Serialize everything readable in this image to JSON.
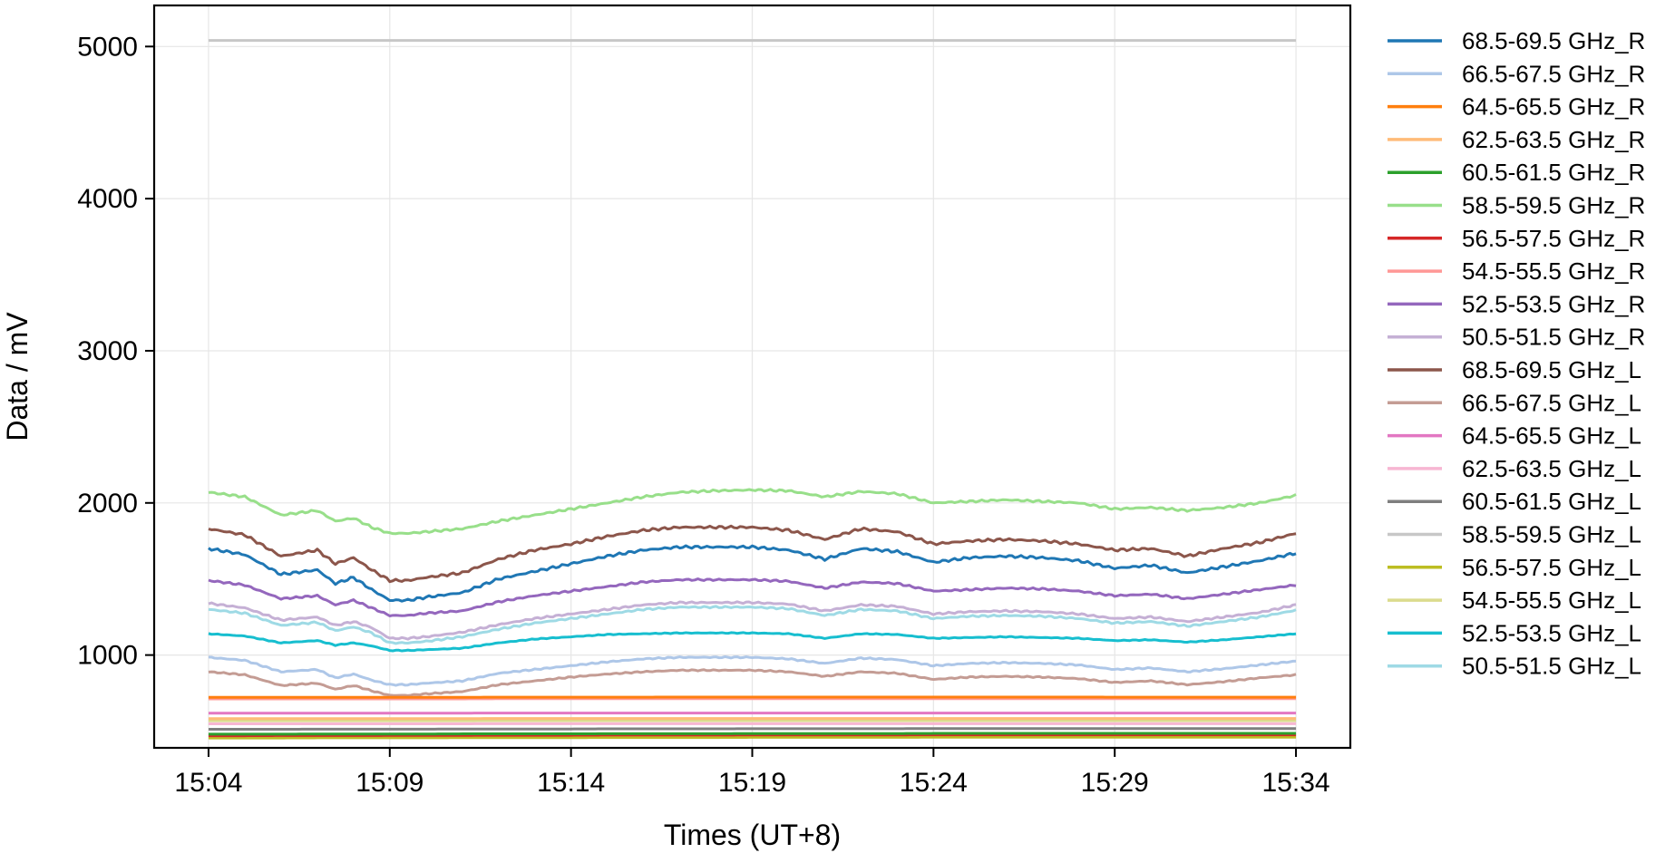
{
  "chart_data": {
    "type": "line",
    "title": "",
    "xlabel": "Times (UT+8)",
    "ylabel": "Data / mV",
    "x_ticks": [
      "15:04",
      "15:09",
      "15:14",
      "15:19",
      "15:24",
      "15:29",
      "15:34"
    ],
    "x_tick_minutes": [
      0,
      5,
      10,
      15,
      20,
      25,
      30
    ],
    "x_range_minutes": [
      -1.5,
      31.5
    ],
    "y_ticks": [
      1000,
      2000,
      3000,
      4000,
      5000
    ],
    "ylim": [
      390,
      5270
    ],
    "grid": true,
    "legend_position": "outside-right",
    "x_knots": [
      0,
      1,
      2,
      3,
      3.5,
      4,
      4.5,
      5,
      5.5,
      6,
      7,
      8,
      9,
      10,
      11,
      12,
      13,
      14,
      15,
      16,
      17,
      18,
      19,
      20,
      21,
      22,
      23,
      24,
      25,
      26,
      27,
      28,
      29,
      30
    ],
    "series": [
      {
        "name": "68.5-69.5 GHz_R",
        "color": "#1f77b4",
        "values": [
          1700,
          1660,
          1530,
          1560,
          1470,
          1510,
          1430,
          1360,
          1360,
          1380,
          1410,
          1500,
          1550,
          1600,
          1650,
          1690,
          1710,
          1710,
          1710,
          1690,
          1630,
          1700,
          1680,
          1610,
          1640,
          1650,
          1640,
          1620,
          1570,
          1590,
          1540,
          1580,
          1620,
          1670
        ]
      },
      {
        "name": "66.5-67.5 GHz_R",
        "color": "#aec7e8",
        "values": [
          985,
          965,
          890,
          905,
          850,
          875,
          835,
          805,
          805,
          815,
          830,
          880,
          905,
          930,
          955,
          975,
          985,
          985,
          985,
          975,
          945,
          980,
          970,
          930,
          945,
          950,
          945,
          935,
          905,
          915,
          890,
          910,
          935,
          960
        ]
      },
      {
        "name": "64.5-65.5 GHz_R",
        "color": "#ff7f0e",
        "values": [
          722,
          722,
          722,
          722,
          722,
          722,
          722,
          722,
          722,
          722,
          722,
          723,
          723,
          723,
          723,
          723,
          724,
          724,
          724,
          724,
          724,
          724,
          724,
          724,
          724,
          724,
          724,
          724,
          723,
          723,
          723,
          723,
          723,
          723
        ]
      },
      {
        "name": "62.5-63.5 GHz_R",
        "color": "#ffbb78",
        "values": [
          582,
          582,
          582,
          582,
          582,
          582,
          582,
          582,
          582,
          582,
          582,
          583,
          583,
          583,
          583,
          583,
          583,
          583,
          583,
          583,
          583,
          583,
          583,
          583,
          583,
          583,
          583,
          583,
          583,
          583,
          583,
          583,
          583,
          583
        ]
      },
      {
        "name": "60.5-61.5 GHz_R",
        "color": "#2ca02c",
        "values": [
          480,
          480,
          480,
          481,
          481,
          481,
          481,
          481,
          481,
          481,
          482,
          482,
          482,
          482,
          483,
          483,
          483,
          483,
          484,
          484,
          484,
          484,
          484,
          485,
          485,
          485,
          485,
          485,
          485,
          485,
          485,
          485,
          485,
          485
        ]
      },
      {
        "name": "58.5-59.5 GHz_R",
        "color": "#98df8a",
        "values": [
          2070,
          2040,
          1920,
          1950,
          1880,
          1900,
          1840,
          1800,
          1800,
          1810,
          1830,
          1880,
          1920,
          1960,
          2000,
          2040,
          2070,
          2080,
          2085,
          2080,
          2040,
          2075,
          2060,
          2000,
          2010,
          2020,
          2010,
          2000,
          1960,
          1970,
          1950,
          1970,
          2000,
          2050
        ]
      },
      {
        "name": "56.5-57.5 GHz_R",
        "color": "#d62728",
        "values": [
          470,
          470,
          471,
          471,
          471,
          471,
          471,
          472,
          472,
          472,
          472,
          473,
          473,
          473,
          474,
          474,
          474,
          474,
          475,
          475,
          475,
          475,
          475,
          476,
          476,
          476,
          476,
          476,
          476,
          476,
          476,
          476,
          476,
          476
        ]
      },
      {
        "name": "54.5-55.5 GHz_R",
        "color": "#ff9896",
        "values": [
          712,
          712,
          712,
          712,
          712,
          712,
          712,
          712,
          712,
          712,
          712,
          713,
          713,
          713,
          713,
          713,
          713,
          713,
          713,
          713,
          713,
          713,
          713,
          713,
          713,
          713,
          713,
          713,
          713,
          713,
          713,
          713,
          713,
          713
        ]
      },
      {
        "name": "52.5-53.5 GHz_R",
        "color": "#9467bd",
        "values": [
          1490,
          1460,
          1370,
          1390,
          1330,
          1360,
          1310,
          1260,
          1260,
          1275,
          1290,
          1350,
          1390,
          1420,
          1450,
          1480,
          1495,
          1495,
          1495,
          1485,
          1440,
          1480,
          1470,
          1420,
          1430,
          1440,
          1435,
          1420,
          1390,
          1400,
          1370,
          1400,
          1430,
          1460
        ]
      },
      {
        "name": "50.5-51.5 GHz_R",
        "color": "#c5b0d5",
        "values": [
          1340,
          1310,
          1230,
          1250,
          1195,
          1220,
          1180,
          1110,
          1110,
          1120,
          1150,
          1200,
          1240,
          1270,
          1300,
          1330,
          1345,
          1345,
          1345,
          1335,
          1290,
          1330,
          1320,
          1270,
          1285,
          1290,
          1285,
          1270,
          1240,
          1250,
          1220,
          1250,
          1280,
          1330
        ]
      },
      {
        "name": "68.5-69.5 GHz_L",
        "color": "#8c564b",
        "values": [
          1830,
          1790,
          1650,
          1690,
          1600,
          1640,
          1560,
          1490,
          1490,
          1510,
          1540,
          1630,
          1690,
          1730,
          1780,
          1820,
          1840,
          1840,
          1840,
          1820,
          1760,
          1830,
          1810,
          1730,
          1750,
          1760,
          1750,
          1730,
          1690,
          1700,
          1650,
          1700,
          1740,
          1800
        ]
      },
      {
        "name": "66.5-67.5 GHz_L",
        "color": "#c49c94",
        "values": [
          890,
          870,
          800,
          815,
          775,
          800,
          765,
          735,
          735,
          745,
          760,
          805,
          830,
          855,
          875,
          890,
          900,
          900,
          900,
          890,
          860,
          890,
          880,
          840,
          855,
          860,
          855,
          845,
          820,
          830,
          805,
          825,
          850,
          870
        ]
      },
      {
        "name": "64.5-65.5 GHz_L",
        "color": "#e377c2",
        "values": [
          618,
          618,
          618,
          618,
          618,
          618,
          618,
          618,
          618,
          618,
          618,
          619,
          619,
          619,
          619,
          619,
          619,
          619,
          619,
          619,
          619,
          619,
          619,
          619,
          619,
          619,
          619,
          619,
          619,
          619,
          619,
          619,
          619,
          619
        ]
      },
      {
        "name": "62.5-63.5 GHz_L",
        "color": "#f7b6d2",
        "values": [
          548,
          548,
          548,
          548,
          548,
          548,
          548,
          548,
          548,
          548,
          548,
          549,
          549,
          549,
          549,
          549,
          549,
          549,
          549,
          549,
          549,
          549,
          549,
          549,
          549,
          549,
          549,
          549,
          549,
          549,
          549,
          549,
          549,
          549
        ]
      },
      {
        "name": "60.5-61.5 GHz_L",
        "color": "#7f7f7f",
        "values": [
          512,
          512,
          512,
          513,
          513,
          513,
          513,
          513,
          513,
          513,
          514,
          514,
          514,
          514,
          515,
          515,
          515,
          515,
          516,
          516,
          516,
          516,
          516,
          517,
          517,
          517,
          517,
          517,
          517,
          517,
          517,
          517,
          517,
          517
        ]
      },
      {
        "name": "58.5-59.5 GHz_L",
        "color": "#c7c7c7",
        "values": [
          5040,
          5040,
          5040,
          5040,
          5040,
          5040,
          5040,
          5040,
          5040,
          5040,
          5040,
          5040,
          5040,
          5040,
          5040,
          5040,
          5040,
          5040,
          5040,
          5040,
          5040,
          5040,
          5040,
          5040,
          5040,
          5040,
          5040,
          5040,
          5040,
          5040,
          5040,
          5040,
          5040,
          5040
        ]
      },
      {
        "name": "56.5-57.5 GHz_L",
        "color": "#bcbd22",
        "values": [
          455,
          455,
          455,
          456,
          456,
          456,
          456,
          456,
          456,
          456,
          457,
          457,
          457,
          457,
          458,
          458,
          458,
          458,
          459,
          459,
          459,
          459,
          459,
          460,
          460,
          460,
          460,
          460,
          460,
          460,
          460,
          460,
          460,
          460
        ]
      },
      {
        "name": "54.5-55.5 GHz_L",
        "color": "#dbdb8d",
        "values": [
          568,
          568,
          568,
          568,
          568,
          568,
          568,
          568,
          568,
          568,
          568,
          569,
          569,
          569,
          569,
          569,
          569,
          569,
          569,
          569,
          569,
          569,
          569,
          569,
          569,
          569,
          569,
          569,
          569,
          569,
          569,
          569,
          569,
          569
        ]
      },
      {
        "name": "52.5-53.5 GHz_L",
        "color": "#17becf",
        "values": [
          1140,
          1125,
          1080,
          1095,
          1065,
          1080,
          1060,
          1030,
          1030,
          1035,
          1045,
          1080,
          1105,
          1120,
          1135,
          1140,
          1145,
          1145,
          1145,
          1140,
          1110,
          1140,
          1135,
          1110,
          1115,
          1120,
          1115,
          1110,
          1095,
          1100,
          1085,
          1100,
          1120,
          1140
        ]
      },
      {
        "name": "50.5-51.5 GHz_L",
        "color": "#9edae5",
        "values": [
          1300,
          1275,
          1195,
          1215,
          1160,
          1185,
          1145,
          1080,
          1080,
          1090,
          1120,
          1170,
          1210,
          1240,
          1270,
          1300,
          1315,
          1315,
          1315,
          1305,
          1260,
          1300,
          1290,
          1240,
          1255,
          1260,
          1255,
          1240,
          1210,
          1220,
          1190,
          1220,
          1250,
          1295
        ]
      }
    ]
  }
}
